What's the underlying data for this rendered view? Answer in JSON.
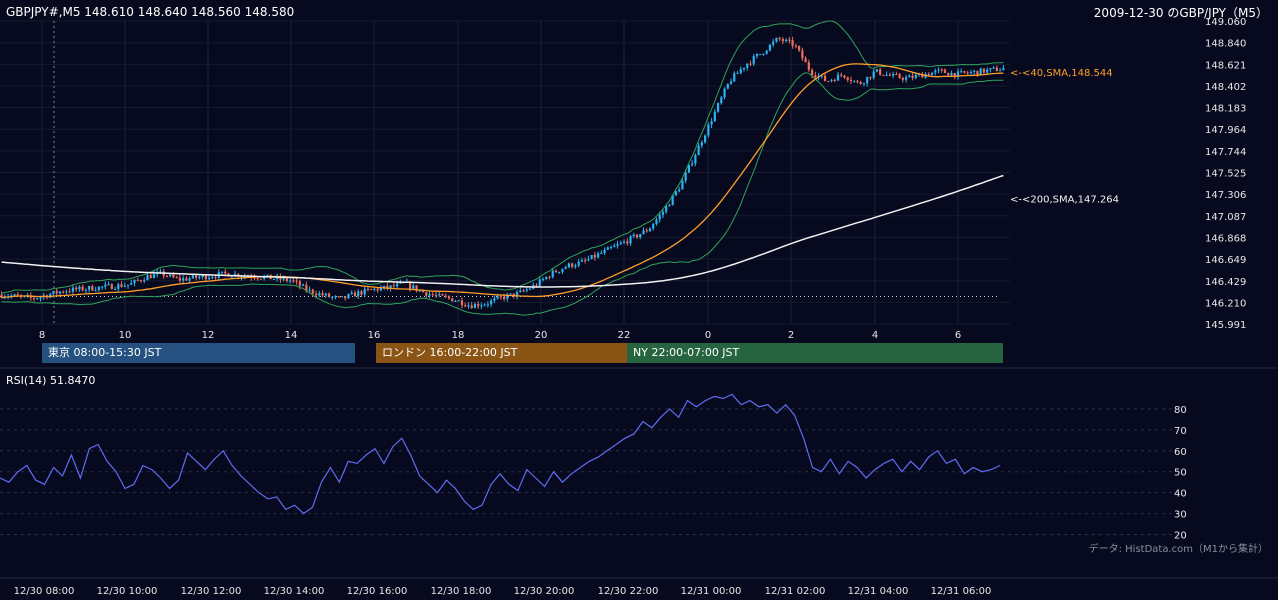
{
  "header": {
    "title": "GBPJPY#,M5 148.610 148.640 148.560 148.580",
    "top_right": "2009-12-30 のGBP/JPY（M5）"
  },
  "sessions": [
    {
      "label": "東京 08:00-15:30 JST",
      "color": "#25507f"
    },
    {
      "label": "ロンドン 16:00-22:00 JST",
      "color": "#8a5514"
    },
    {
      "label": "NY 22:00-07:00 JST",
      "color": "#26633f"
    }
  ],
  "rsi": {
    "title": "RSI(14) 51.8470"
  },
  "source_note": "データ: HistData.com（M1から集計）",
  "chart_data": [
    {
      "type": "candlestick",
      "price_axis": {
        "ticks": [
          "149.060",
          "148.840",
          "148.621",
          "148.402",
          "148.183",
          "147.964",
          "147.744",
          "147.525",
          "147.306",
          "147.087",
          "146.868",
          "146.649",
          "146.429",
          "146.210",
          "145.991"
        ],
        "range": [
          145.991,
          149.06
        ]
      },
      "hour_ticks": [
        "8",
        "10",
        "12",
        "14",
        "16",
        "18",
        "20",
        "22",
        "0",
        "2",
        "4",
        "6"
      ],
      "indicators": [
        {
          "label": "<-<40,SMA,148.544",
          "value": 148.544,
          "color": "#ff9e2c"
        },
        {
          "label": "<-<200,SMA,147.264",
          "value": 147.264,
          "color": "#f2f2f2"
        }
      ],
      "bollinger_color": "#2fa35b",
      "up_color": "#2ab4f0",
      "down_color": "#ef6e5a",
      "reference_line": 146.27,
      "price_path": [
        [
          0,
          146.29
        ],
        [
          10,
          146.25
        ],
        [
          20,
          146.33
        ],
        [
          30,
          146.36
        ],
        [
          40,
          146.39
        ],
        [
          45,
          146.47
        ],
        [
          50,
          146.5
        ],
        [
          55,
          146.44
        ],
        [
          60,
          146.46
        ],
        [
          70,
          146.5
        ],
        [
          80,
          146.47
        ],
        [
          90,
          146.43
        ],
        [
          95,
          146.33
        ],
        [
          100,
          146.28
        ],
        [
          105,
          146.24
        ],
        [
          110,
          146.3
        ],
        [
          115,
          146.34
        ],
        [
          120,
          146.36
        ],
        [
          125,
          146.4
        ],
        [
          130,
          146.32
        ],
        [
          135,
          146.27
        ],
        [
          140,
          146.24
        ],
        [
          145,
          146.18
        ],
        [
          150,
          146.2
        ],
        [
          155,
          146.26
        ],
        [
          160,
          146.3
        ],
        [
          165,
          146.38
        ],
        [
          170,
          146.5
        ],
        [
          175,
          146.58
        ],
        [
          180,
          146.62
        ],
        [
          185,
          146.7
        ],
        [
          190,
          146.78
        ],
        [
          195,
          146.86
        ],
        [
          200,
          146.95
        ],
        [
          205,
          147.15
        ],
        [
          210,
          147.4
        ],
        [
          215,
          147.75
        ],
        [
          220,
          148.1
        ],
        [
          225,
          148.45
        ],
        [
          230,
          148.62
        ],
        [
          235,
          148.74
        ],
        [
          240,
          148.88
        ],
        [
          245,
          148.82
        ],
        [
          250,
          148.55
        ],
        [
          255,
          148.45
        ],
        [
          260,
          148.52
        ],
        [
          265,
          148.42
        ],
        [
          270,
          148.55
        ],
        [
          275,
          148.5
        ],
        [
          280,
          148.48
        ],
        [
          285,
          148.52
        ],
        [
          290,
          148.55
        ],
        [
          295,
          148.52
        ],
        [
          300,
          148.54
        ],
        [
          305,
          148.56
        ],
        [
          310,
          148.58
        ]
      ]
    },
    {
      "type": "line",
      "name": "RSI(14)",
      "y_ticks": [
        "80",
        "70",
        "60",
        "50",
        "40",
        "30",
        "20"
      ],
      "y_range": [
        15,
        90
      ],
      "color": "#5f6cf0",
      "x_labels": [
        "12/30 08:00",
        "12/30 10:00",
        "12/30 12:00",
        "12/30 14:00",
        "12/30 16:00",
        "12/30 18:00",
        "12/30 20:00",
        "12/30 22:00",
        "12/31 00:00",
        "12/31 02:00",
        "12/31 04:00",
        "12/31 06:00"
      ],
      "values": [
        [
          0,
          47
        ],
        [
          4,
          45
        ],
        [
          8,
          50
        ],
        [
          12,
          53
        ],
        [
          16,
          46
        ],
        [
          20,
          44
        ],
        [
          24,
          52
        ],
        [
          28,
          48
        ],
        [
          32,
          58
        ],
        [
          36,
          47
        ],
        [
          40,
          61
        ],
        [
          44,
          63
        ],
        [
          48,
          55
        ],
        [
          52,
          50
        ],
        [
          56,
          42
        ],
        [
          60,
          44
        ],
        [
          64,
          53
        ],
        [
          68,
          51
        ],
        [
          72,
          47
        ],
        [
          76,
          42
        ],
        [
          80,
          46
        ],
        [
          84,
          59
        ],
        [
          88,
          55
        ],
        [
          92,
          51
        ],
        [
          96,
          56
        ],
        [
          100,
          60
        ],
        [
          104,
          53
        ],
        [
          108,
          48
        ],
        [
          112,
          44
        ],
        [
          116,
          40
        ],
        [
          120,
          37
        ],
        [
          124,
          38
        ],
        [
          128,
          32
        ],
        [
          132,
          34
        ],
        [
          136,
          30
        ],
        [
          140,
          33
        ],
        [
          144,
          45
        ],
        [
          148,
          52
        ],
        [
          152,
          45
        ],
        [
          156,
          55
        ],
        [
          160,
          54
        ],
        [
          164,
          58
        ],
        [
          168,
          61
        ],
        [
          172,
          54
        ],
        [
          176,
          62
        ],
        [
          180,
          66
        ],
        [
          184,
          58
        ],
        [
          188,
          48
        ],
        [
          192,
          44
        ],
        [
          196,
          40
        ],
        [
          200,
          46
        ],
        [
          204,
          42
        ],
        [
          208,
          36
        ],
        [
          212,
          32
        ],
        [
          216,
          34
        ],
        [
          220,
          44
        ],
        [
          224,
          49
        ],
        [
          228,
          44
        ],
        [
          232,
          41
        ],
        [
          236,
          51
        ],
        [
          240,
          47
        ],
        [
          244,
          43
        ],
        [
          248,
          50
        ],
        [
          252,
          45
        ],
        [
          256,
          49
        ],
        [
          260,
          52
        ],
        [
          264,
          55
        ],
        [
          268,
          57
        ],
        [
          272,
          60
        ],
        [
          276,
          63
        ],
        [
          280,
          66
        ],
        [
          284,
          68
        ],
        [
          288,
          74
        ],
        [
          292,
          71
        ],
        [
          296,
          76
        ],
        [
          300,
          80
        ],
        [
          304,
          76
        ],
        [
          308,
          84
        ],
        [
          312,
          81
        ],
        [
          316,
          84
        ],
        [
          320,
          86
        ],
        [
          324,
          85
        ],
        [
          328,
          87
        ],
        [
          332,
          82
        ],
        [
          336,
          84
        ],
        [
          340,
          81
        ],
        [
          344,
          82
        ],
        [
          348,
          78
        ],
        [
          352,
          82
        ],
        [
          356,
          77
        ],
        [
          360,
          66
        ],
        [
          364,
          52
        ],
        [
          368,
          50
        ],
        [
          372,
          56
        ],
        [
          376,
          49
        ],
        [
          380,
          55
        ],
        [
          384,
          52
        ],
        [
          388,
          47
        ],
        [
          392,
          51
        ],
        [
          396,
          54
        ],
        [
          400,
          56
        ],
        [
          404,
          50
        ],
        [
          408,
          55
        ],
        [
          412,
          51
        ],
        [
          416,
          57
        ],
        [
          420,
          60
        ],
        [
          424,
          54
        ],
        [
          428,
          56
        ],
        [
          432,
          49
        ],
        [
          436,
          52
        ],
        [
          440,
          50
        ],
        [
          444,
          51
        ],
        [
          448,
          53
        ]
      ]
    }
  ]
}
